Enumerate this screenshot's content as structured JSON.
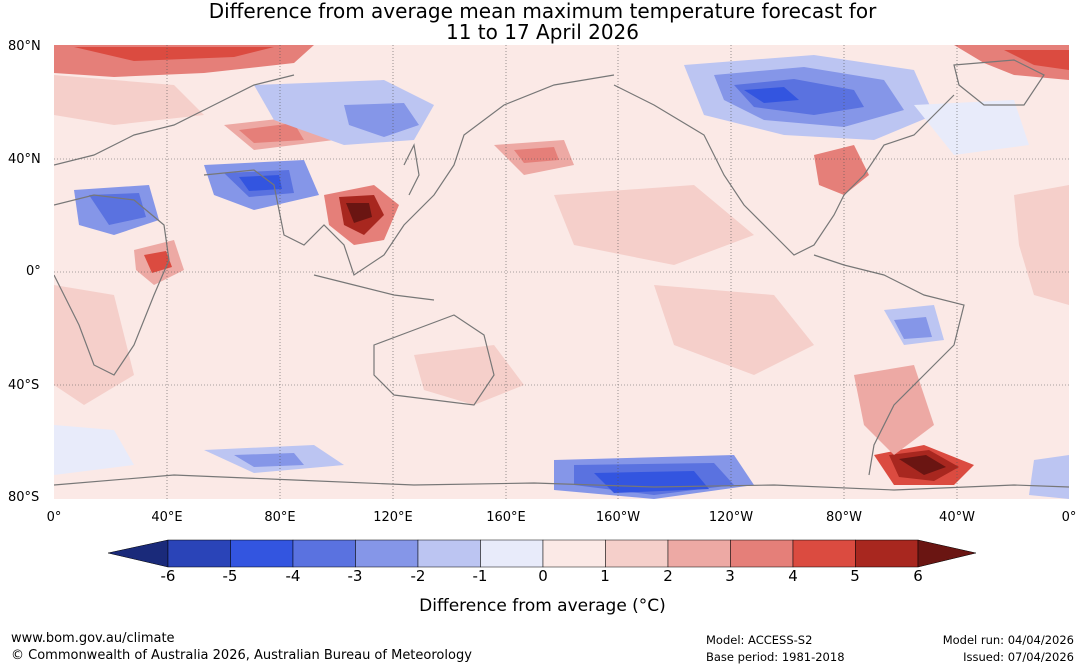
{
  "title": {
    "line1": "Difference from average mean maximum temperature forecast for",
    "line2": "11 to 17 April 2026"
  },
  "map": {
    "lat_labels": [
      "80°N",
      "40°N",
      "0°",
      "40°S",
      "80°S"
    ],
    "lon_labels": [
      "0°",
      "40°E",
      "80°E",
      "120°E",
      "160°E",
      "160°W",
      "120°W",
      "80°W",
      "40°W",
      "0°"
    ],
    "background_color": "#fbe9e6",
    "coast_color": "#777777"
  },
  "colorbar": {
    "ticks": [
      "-6",
      "-5",
      "-4",
      "-3",
      "-2",
      "-1",
      "0",
      "1",
      "2",
      "3",
      "4",
      "5",
      "6"
    ],
    "colors": [
      "#1a2a7a",
      "#2a44b8",
      "#3355e0",
      "#5a72e0",
      "#8596e8",
      "#bcc5f2",
      "#e8ebfa",
      "#fbe9e6",
      "#f5cfca",
      "#eda9a4",
      "#e57f79",
      "#db4b40",
      "#a8271f",
      "#6a1512"
    ],
    "label": "Difference from average (°C)"
  },
  "footer": {
    "website": "www.bom.gov.au/climate",
    "copyright": "© Commonwealth of Australia 2026, Australian Bureau of Meteorology",
    "model": "Model: ACCESS-S2",
    "base_period": "Base period: 1981-2018",
    "model_run": "Model run: 04/04/2026",
    "issued": "Issued: 07/04/2026"
  }
}
